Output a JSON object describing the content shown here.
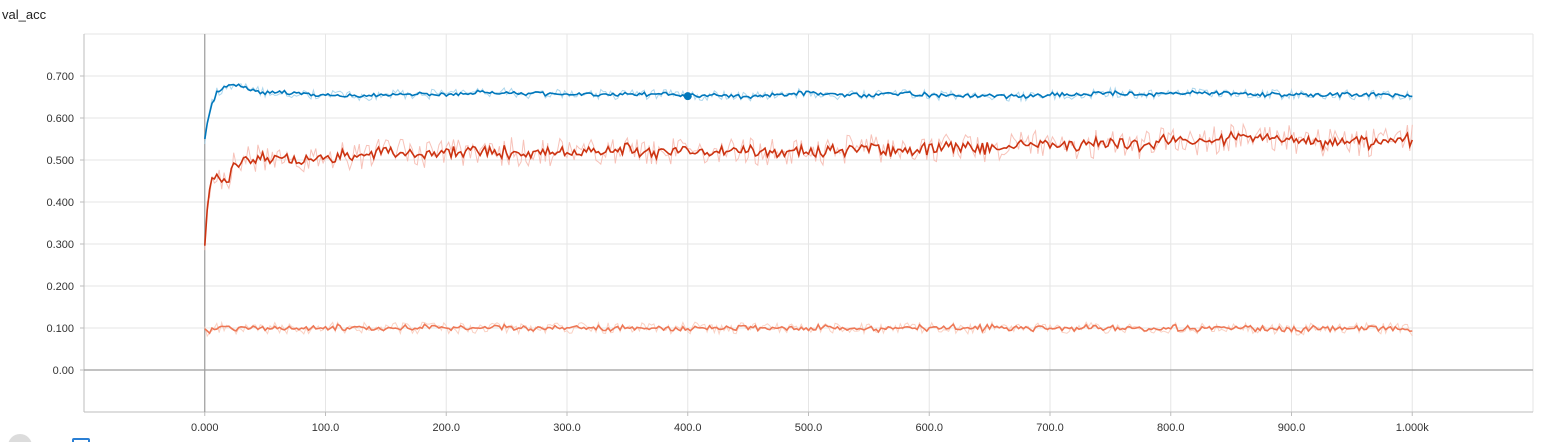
{
  "chart_data": {
    "type": "line",
    "title": "val_acc",
    "xlabel": "",
    "ylabel": "",
    "xlim": [
      -100,
      1100
    ],
    "ylim": [
      -0.1,
      0.8
    ],
    "x_ticks": [
      {
        "value": 0,
        "label": "0.000"
      },
      {
        "value": 100,
        "label": "100.0"
      },
      {
        "value": 200,
        "label": "200.0"
      },
      {
        "value": 300,
        "label": "300.0"
      },
      {
        "value": 400,
        "label": "400.0"
      },
      {
        "value": 500,
        "label": "500.0"
      },
      {
        "value": 600,
        "label": "600.0"
      },
      {
        "value": 700,
        "label": "700.0"
      },
      {
        "value": 800,
        "label": "800.0"
      },
      {
        "value": 900,
        "label": "900.0"
      },
      {
        "value": 1000,
        "label": "1.000k"
      }
    ],
    "y_ticks": [
      {
        "value": 0.0,
        "label": "0.00"
      },
      {
        "value": 0.1,
        "label": "0.100"
      },
      {
        "value": 0.2,
        "label": "0.200"
      },
      {
        "value": 0.3,
        "label": "0.300"
      },
      {
        "value": 0.4,
        "label": "0.400"
      },
      {
        "value": 0.5,
        "label": "0.500"
      },
      {
        "value": 0.6,
        "label": "0.600"
      },
      {
        "value": 0.7,
        "label": "0.700"
      }
    ],
    "grid": true,
    "series": [
      {
        "color": "#0077bb",
        "raw_color": "#9fd0ea",
        "x": [
          0,
          5,
          10,
          15,
          20,
          25,
          30,
          40,
          50,
          60,
          80,
          100,
          125,
          150,
          175,
          200,
          225,
          250,
          275,
          300,
          325,
          350,
          375,
          400,
          425,
          450,
          475,
          500,
          525,
          550,
          575,
          600,
          625,
          650,
          675,
          700,
          725,
          750,
          775,
          800,
          825,
          850,
          875,
          900,
          925,
          950,
          975,
          1000
        ],
        "values": [
          0.55,
          0.63,
          0.66,
          0.67,
          0.68,
          0.68,
          0.675,
          0.665,
          0.66,
          0.662,
          0.658,
          0.655,
          0.652,
          0.655,
          0.658,
          0.655,
          0.66,
          0.66,
          0.658,
          0.657,
          0.656,
          0.655,
          0.657,
          0.652,
          0.655,
          0.65,
          0.655,
          0.66,
          0.655,
          0.655,
          0.658,
          0.655,
          0.652,
          0.655,
          0.65,
          0.655,
          0.657,
          0.66,
          0.655,
          0.658,
          0.66,
          0.658,
          0.656,
          0.655,
          0.656,
          0.655,
          0.654,
          0.655
        ]
      },
      {
        "color": "#cc3311",
        "raw_color": "#f6b7ad",
        "x": [
          0,
          5,
          10,
          15,
          20,
          25,
          30,
          40,
          50,
          60,
          80,
          100,
          125,
          150,
          175,
          200,
          225,
          250,
          275,
          300,
          325,
          350,
          375,
          400,
          425,
          450,
          475,
          500,
          525,
          550,
          575,
          600,
          625,
          650,
          675,
          700,
          725,
          750,
          775,
          800,
          825,
          850,
          875,
          900,
          925,
          950,
          975,
          1000
        ],
        "values": [
          0.31,
          0.46,
          0.47,
          0.45,
          0.46,
          0.49,
          0.5,
          0.5,
          0.505,
          0.51,
          0.5,
          0.505,
          0.51,
          0.52,
          0.51,
          0.515,
          0.52,
          0.52,
          0.515,
          0.52,
          0.52,
          0.525,
          0.515,
          0.525,
          0.52,
          0.525,
          0.515,
          0.52,
          0.525,
          0.53,
          0.52,
          0.525,
          0.53,
          0.53,
          0.535,
          0.54,
          0.535,
          0.54,
          0.535,
          0.545,
          0.545,
          0.55,
          0.555,
          0.55,
          0.54,
          0.545,
          0.54,
          0.55
        ]
      },
      {
        "color": "#ee7755",
        "raw_color": "#f9c9b8",
        "x": [
          0,
          5,
          10,
          15,
          20,
          25,
          30,
          40,
          50,
          60,
          80,
          100,
          125,
          150,
          175,
          200,
          225,
          250,
          275,
          300,
          325,
          350,
          375,
          400,
          425,
          450,
          475,
          500,
          525,
          550,
          575,
          600,
          625,
          650,
          675,
          700,
          725,
          750,
          775,
          800,
          825,
          850,
          875,
          900,
          925,
          950,
          975,
          1000
        ],
        "values": [
          0.09,
          0.095,
          0.1,
          0.1,
          0.1,
          0.098,
          0.1,
          0.1,
          0.1,
          0.1,
          0.098,
          0.1,
          0.1,
          0.098,
          0.1,
          0.1,
          0.1,
          0.1,
          0.098,
          0.1,
          0.1,
          0.1,
          0.098,
          0.1,
          0.1,
          0.1,
          0.098,
          0.1,
          0.1,
          0.098,
          0.1,
          0.1,
          0.1,
          0.1,
          0.098,
          0.1,
          0.1,
          0.1,
          0.098,
          0.1,
          0.1,
          0.1,
          0.098,
          0.095,
          0.1,
          0.098,
          0.1,
          0.095
        ]
      }
    ],
    "marker": {
      "series_index": 0,
      "x": 400,
      "y": 0.652
    }
  }
}
